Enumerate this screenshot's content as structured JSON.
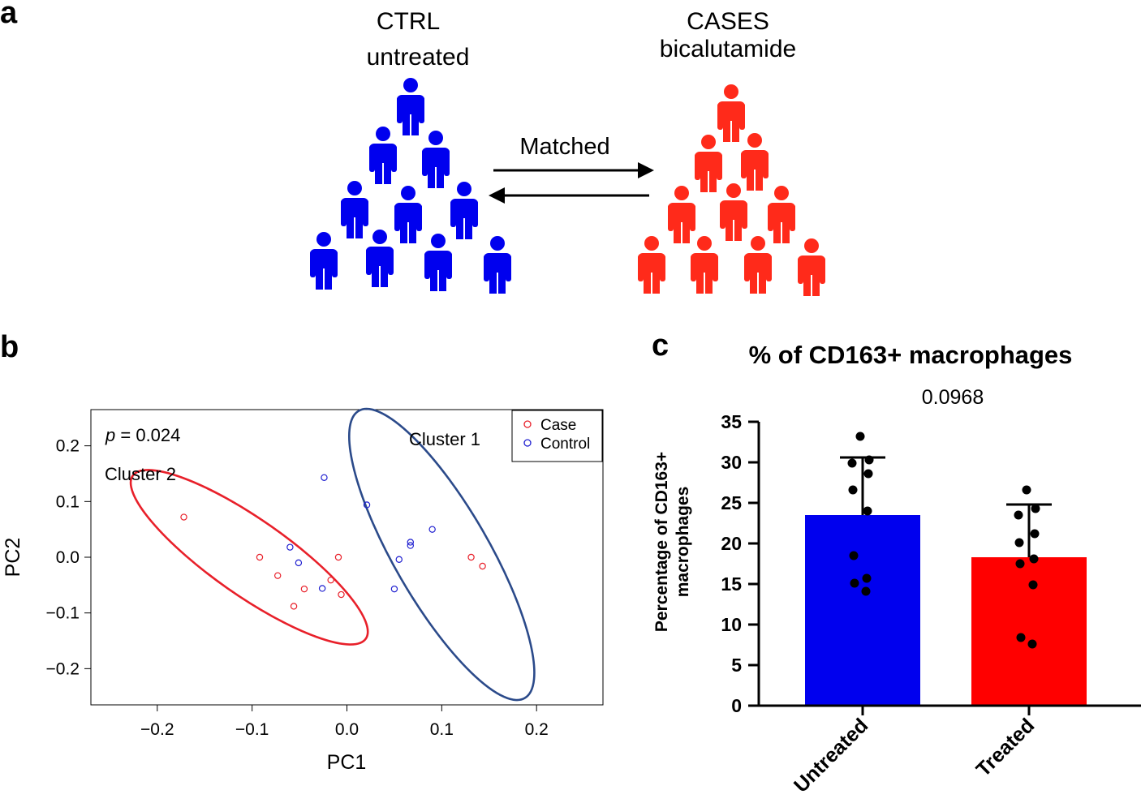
{
  "panel_a": {
    "label": "a",
    "left_group": {
      "line1": "CTRL",
      "line2": "untreated",
      "color": "#0000ee"
    },
    "right_group": {
      "line1": "CASES",
      "line2": "bicalutamide",
      "color": "#ff2a1a"
    },
    "arrow_label": "Matched"
  },
  "panel_b_label": "b",
  "panel_c_label": "c",
  "chart_data": [
    {
      "type": "scatter",
      "panel": "b",
      "xlabel": "PC1",
      "ylabel": "PC2",
      "xlim": [
        -0.27,
        0.27
      ],
      "ylim": [
        -0.265,
        0.265
      ],
      "xticks": [
        -0.2,
        -0.1,
        0.0,
        0.1,
        0.2
      ],
      "xtick_labels": [
        "−0.2",
        "−0.1",
        "0.0",
        "0.1",
        "0.2"
      ],
      "yticks": [
        0.2,
        0.1,
        0.0,
        -0.1,
        -0.2
      ],
      "ytick_labels": [
        "0.2",
        "0.1",
        "0.0",
        "−0.1",
        "−0.2"
      ],
      "annotation_p_label": "p",
      "annotation_p_value": "= 0.024",
      "legend": [
        {
          "name": "Case",
          "color": "#e8202a"
        },
        {
          "name": "Control",
          "color": "#1f1fd0"
        }
      ],
      "legend_position": "top-right",
      "series": [
        {
          "name": "Case",
          "color": "#e8202a",
          "points": [
            [
              -0.172,
              0.072
            ],
            [
              -0.092,
              0.0
            ],
            [
              -0.073,
              -0.033
            ],
            [
              -0.045,
              -0.057
            ],
            [
              -0.056,
              -0.088
            ],
            [
              -0.017,
              -0.041
            ],
            [
              -0.009,
              0.0
            ],
            [
              -0.006,
              -0.067
            ],
            [
              0.131,
              0.0
            ],
            [
              0.143,
              -0.016
            ]
          ]
        },
        {
          "name": "Control",
          "color": "#1f1fd0",
          "points": [
            [
              -0.06,
              0.018
            ],
            [
              -0.051,
              -0.01
            ],
            [
              -0.026,
              -0.056
            ],
            [
              -0.024,
              0.143
            ],
            [
              0.021,
              0.094
            ],
            [
              0.055,
              -0.004
            ],
            [
              0.067,
              0.027
            ],
            [
              0.067,
              0.021
            ],
            [
              0.05,
              -0.057
            ],
            [
              0.09,
              0.05
            ]
          ]
        }
      ],
      "clusters": [
        {
          "name": "Cluster 1",
          "color": "#2b4a8a",
          "center": [
            0.1,
            0.005
          ],
          "radius_x": 0.175,
          "radius_y": 0.085,
          "rotation_deg": 60
        },
        {
          "name": "Cluster 2",
          "color": "#e8202a",
          "center": [
            -0.103,
            0.0
          ],
          "radius_x": 0.15,
          "radius_y": 0.068,
          "rotation_deg": 35
        }
      ]
    },
    {
      "type": "bar",
      "panel": "c",
      "title": "% of CD163+ macrophages",
      "p_value": "0.0968",
      "ylabel_line1": "Percentage of CD163+",
      "ylabel_line2": "macrophages",
      "ylim": [
        0,
        35
      ],
      "yticks": [
        0,
        5,
        10,
        15,
        20,
        25,
        30,
        35
      ],
      "categories": [
        "Untreated",
        "Treated"
      ],
      "values": [
        23.5,
        18.3
      ],
      "errors": [
        7.1,
        6.5
      ],
      "colors": [
        "#0000ee",
        "#ff0000"
      ],
      "points": [
        [
          33.2,
          30.3,
          29.9,
          28.6,
          26.6,
          24.0,
          18.5,
          15.7,
          15.1,
          14.1
        ],
        [
          26.6,
          24.3,
          23.5,
          21.2,
          20.1,
          18.1,
          17.5,
          14.9,
          8.4,
          7.6
        ]
      ]
    }
  ]
}
